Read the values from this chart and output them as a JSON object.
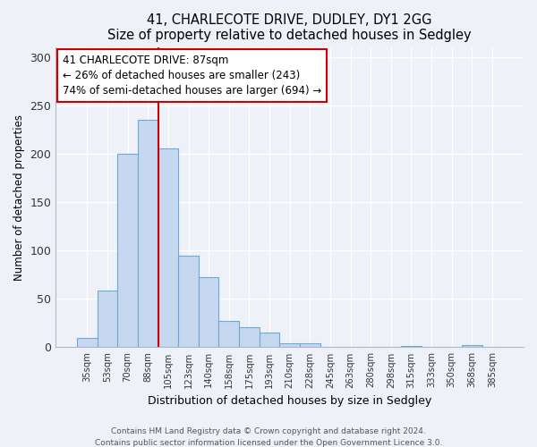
{
  "title": "41, CHARLECOTE DRIVE, DUDLEY, DY1 2GG",
  "subtitle": "Size of property relative to detached houses in Sedgley",
  "xlabel": "Distribution of detached houses by size in Sedgley",
  "ylabel": "Number of detached properties",
  "bar_labels": [
    "35sqm",
    "53sqm",
    "70sqm",
    "88sqm",
    "105sqm",
    "123sqm",
    "140sqm",
    "158sqm",
    "175sqm",
    "193sqm",
    "210sqm",
    "228sqm",
    "245sqm",
    "263sqm",
    "280sqm",
    "298sqm",
    "315sqm",
    "333sqm",
    "350sqm",
    "368sqm",
    "385sqm"
  ],
  "bar_values": [
    10,
    59,
    200,
    235,
    205,
    95,
    72,
    27,
    21,
    15,
    4,
    4,
    0,
    0,
    0,
    0,
    1,
    0,
    0,
    2,
    0
  ],
  "bar_color": "#c5d8ef",
  "bar_edge_color": "#6aaad4",
  "ylim": [
    0,
    310
  ],
  "yticks": [
    0,
    50,
    100,
    150,
    200,
    250,
    300
  ],
  "vline_x": 3.5,
  "vline_color": "#cc0000",
  "annotation_title": "41 CHARLECOTE DRIVE: 87sqm",
  "annotation_line1": "← 26% of detached houses are smaller (243)",
  "annotation_line2": "74% of semi-detached houses are larger (694) →",
  "annotation_box_facecolor": "#ffffff",
  "annotation_box_edgecolor": "#cc0000",
  "footer1": "Contains HM Land Registry data © Crown copyright and database right 2024.",
  "footer2": "Contains public sector information licensed under the Open Government Licence 3.0.",
  "background_color": "#eef2f8"
}
